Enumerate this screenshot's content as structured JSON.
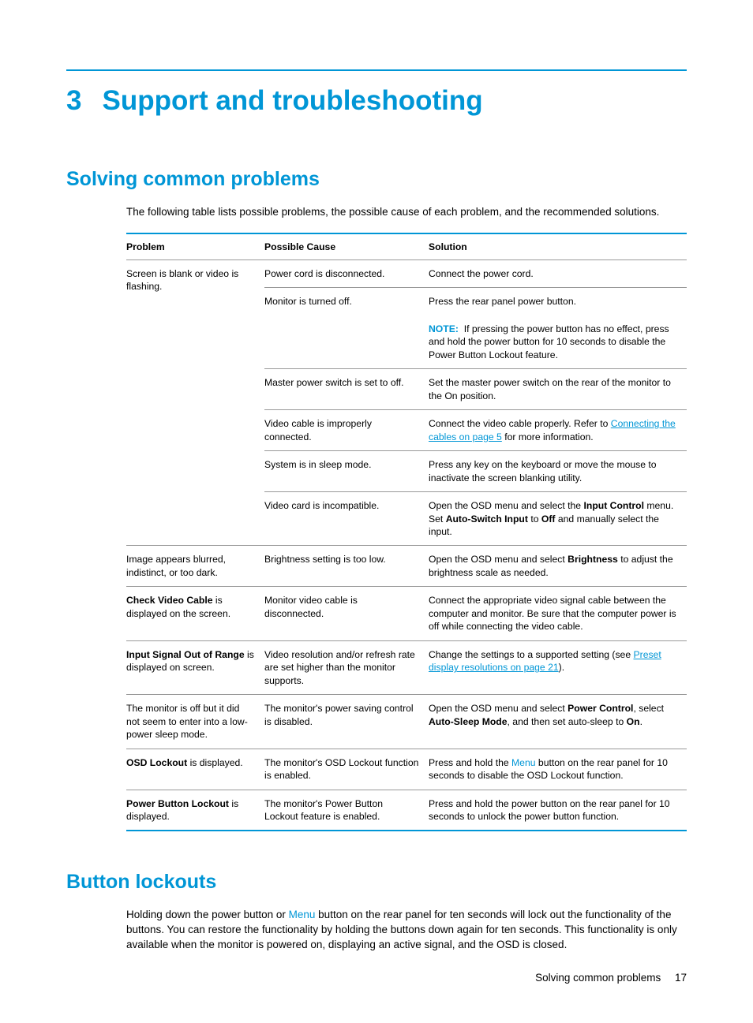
{
  "chapter": {
    "number": "3",
    "title": "Support and troubleshooting"
  },
  "section1": {
    "title": "Solving common problems",
    "intro": "The following table lists possible problems, the possible cause of each problem, and the recommended solutions."
  },
  "table": {
    "headers": {
      "problem": "Problem",
      "cause": "Possible Cause",
      "solution": "Solution"
    },
    "r1": {
      "problem": "Screen is blank or video is flashing.",
      "c1": "Power cord is disconnected.",
      "s1": "Connect the power cord.",
      "c2": "Monitor is turned off.",
      "s2": "Press the rear panel power button.",
      "note_label": "NOTE:",
      "note_text": "If pressing the power button has no effect, press and hold the power button for 10 seconds to disable the Power Button Lockout feature.",
      "c3": "Master power switch is set to off.",
      "s3": "Set the master power switch on the rear of the monitor to the On position.",
      "c4": "Video cable is improperly connected.",
      "s4a": "Connect the video cable properly. Refer to ",
      "s4_link": "Connecting the cables on page 5",
      "s4b": " for more information.",
      "c5": "System is in sleep mode.",
      "s5": "Press any key on the keyboard or move the mouse to inactivate the screen blanking utility.",
      "c6": "Video card is incompatible.",
      "s6a": "Open the OSD menu and select the ",
      "s6_b1": "Input Control",
      "s6b": " menu. Set ",
      "s6_b2": "Auto-Switch Input",
      "s6c": " to ",
      "s6_b3": "Off",
      "s6d": " and manually select the input."
    },
    "r2": {
      "problem": "Image appears blurred, indistinct, or too dark.",
      "cause": "Brightness setting is too low.",
      "sol_a": "Open the OSD menu and select ",
      "sol_b1": "Brightness",
      "sol_b": " to adjust the brightness scale as needed."
    },
    "r3": {
      "problem_b": "Check Video Cable",
      "problem_t": " is displayed on the screen.",
      "cause": "Monitor video cable is disconnected.",
      "sol": "Connect the appropriate video signal cable between the computer and monitor. Be sure that the computer power is off while connecting the video cable."
    },
    "r4": {
      "problem_b": "Input Signal Out of Range",
      "problem_t": " is displayed on screen.",
      "cause": "Video resolution and/or refresh rate are set higher than the monitor supports.",
      "sol_a": "Change the settings to a supported setting (see ",
      "sol_link": "Preset display resolutions on page 21",
      "sol_b": ")."
    },
    "r5": {
      "problem": "The monitor is off but it did not seem to enter into a low-power sleep mode.",
      "cause": "The monitor's power saving control is disabled.",
      "sol_a": "Open the OSD menu and select ",
      "sol_b1": "Power Control",
      "sol_b": ", select ",
      "sol_b2": "Auto-Sleep Mode",
      "sol_c": ", and then set auto-sleep to ",
      "sol_b3": "On",
      "sol_d": "."
    },
    "r6": {
      "problem_b": "OSD Lockout",
      "problem_t": " is displayed.",
      "cause": "The monitor's OSD Lockout function is enabled.",
      "sol_a": "Press and hold the ",
      "sol_menu": "Menu",
      "sol_b": " button on the rear panel for 10 seconds to disable the OSD Lockout function."
    },
    "r7": {
      "problem_b": "Power Button Lockout",
      "problem_t": " is displayed.",
      "cause": "The monitor's Power Button Lockout feature is enabled.",
      "sol": "Press and hold the power button on the rear panel for 10 seconds to unlock the power button function."
    }
  },
  "section2": {
    "title": "Button lockouts",
    "body_a": "Holding down the power button or ",
    "body_menu": "Menu",
    "body_b": " button on the rear panel for ten seconds will lock out the functionality of the buttons. You can restore the functionality by holding the buttons down again for ten seconds. This functionality is only available when the monitor is powered on, displaying an active signal, and the OSD is closed."
  },
  "footer": {
    "text": "Solving common problems",
    "page": "17"
  }
}
